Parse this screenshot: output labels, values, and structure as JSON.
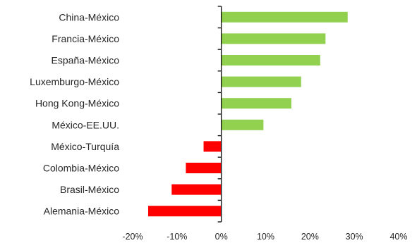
{
  "chart_data": {
    "type": "bar",
    "orientation": "horizontal",
    "categories": [
      "China-México",
      "Francia-México",
      "España-México",
      "Luxemburgo-México",
      "Hong Kong-México",
      "México-EE.UU.",
      "México-Turquía",
      "Colombia-México",
      "Brasil-México",
      "Alemania-México"
    ],
    "values": [
      28.5,
      23.5,
      22.3,
      18.0,
      15.8,
      9.5,
      -4.0,
      -8.0,
      -11.2,
      -16.5
    ],
    "xlim": [
      -20,
      40
    ],
    "xticks": [
      "-20%",
      "-10%",
      "0%",
      "10%",
      "20%",
      "30%",
      "40%"
    ],
    "grid": false,
    "legend": "none",
    "colors": {
      "positive": "#92d050",
      "negative": "#ff0000"
    }
  }
}
